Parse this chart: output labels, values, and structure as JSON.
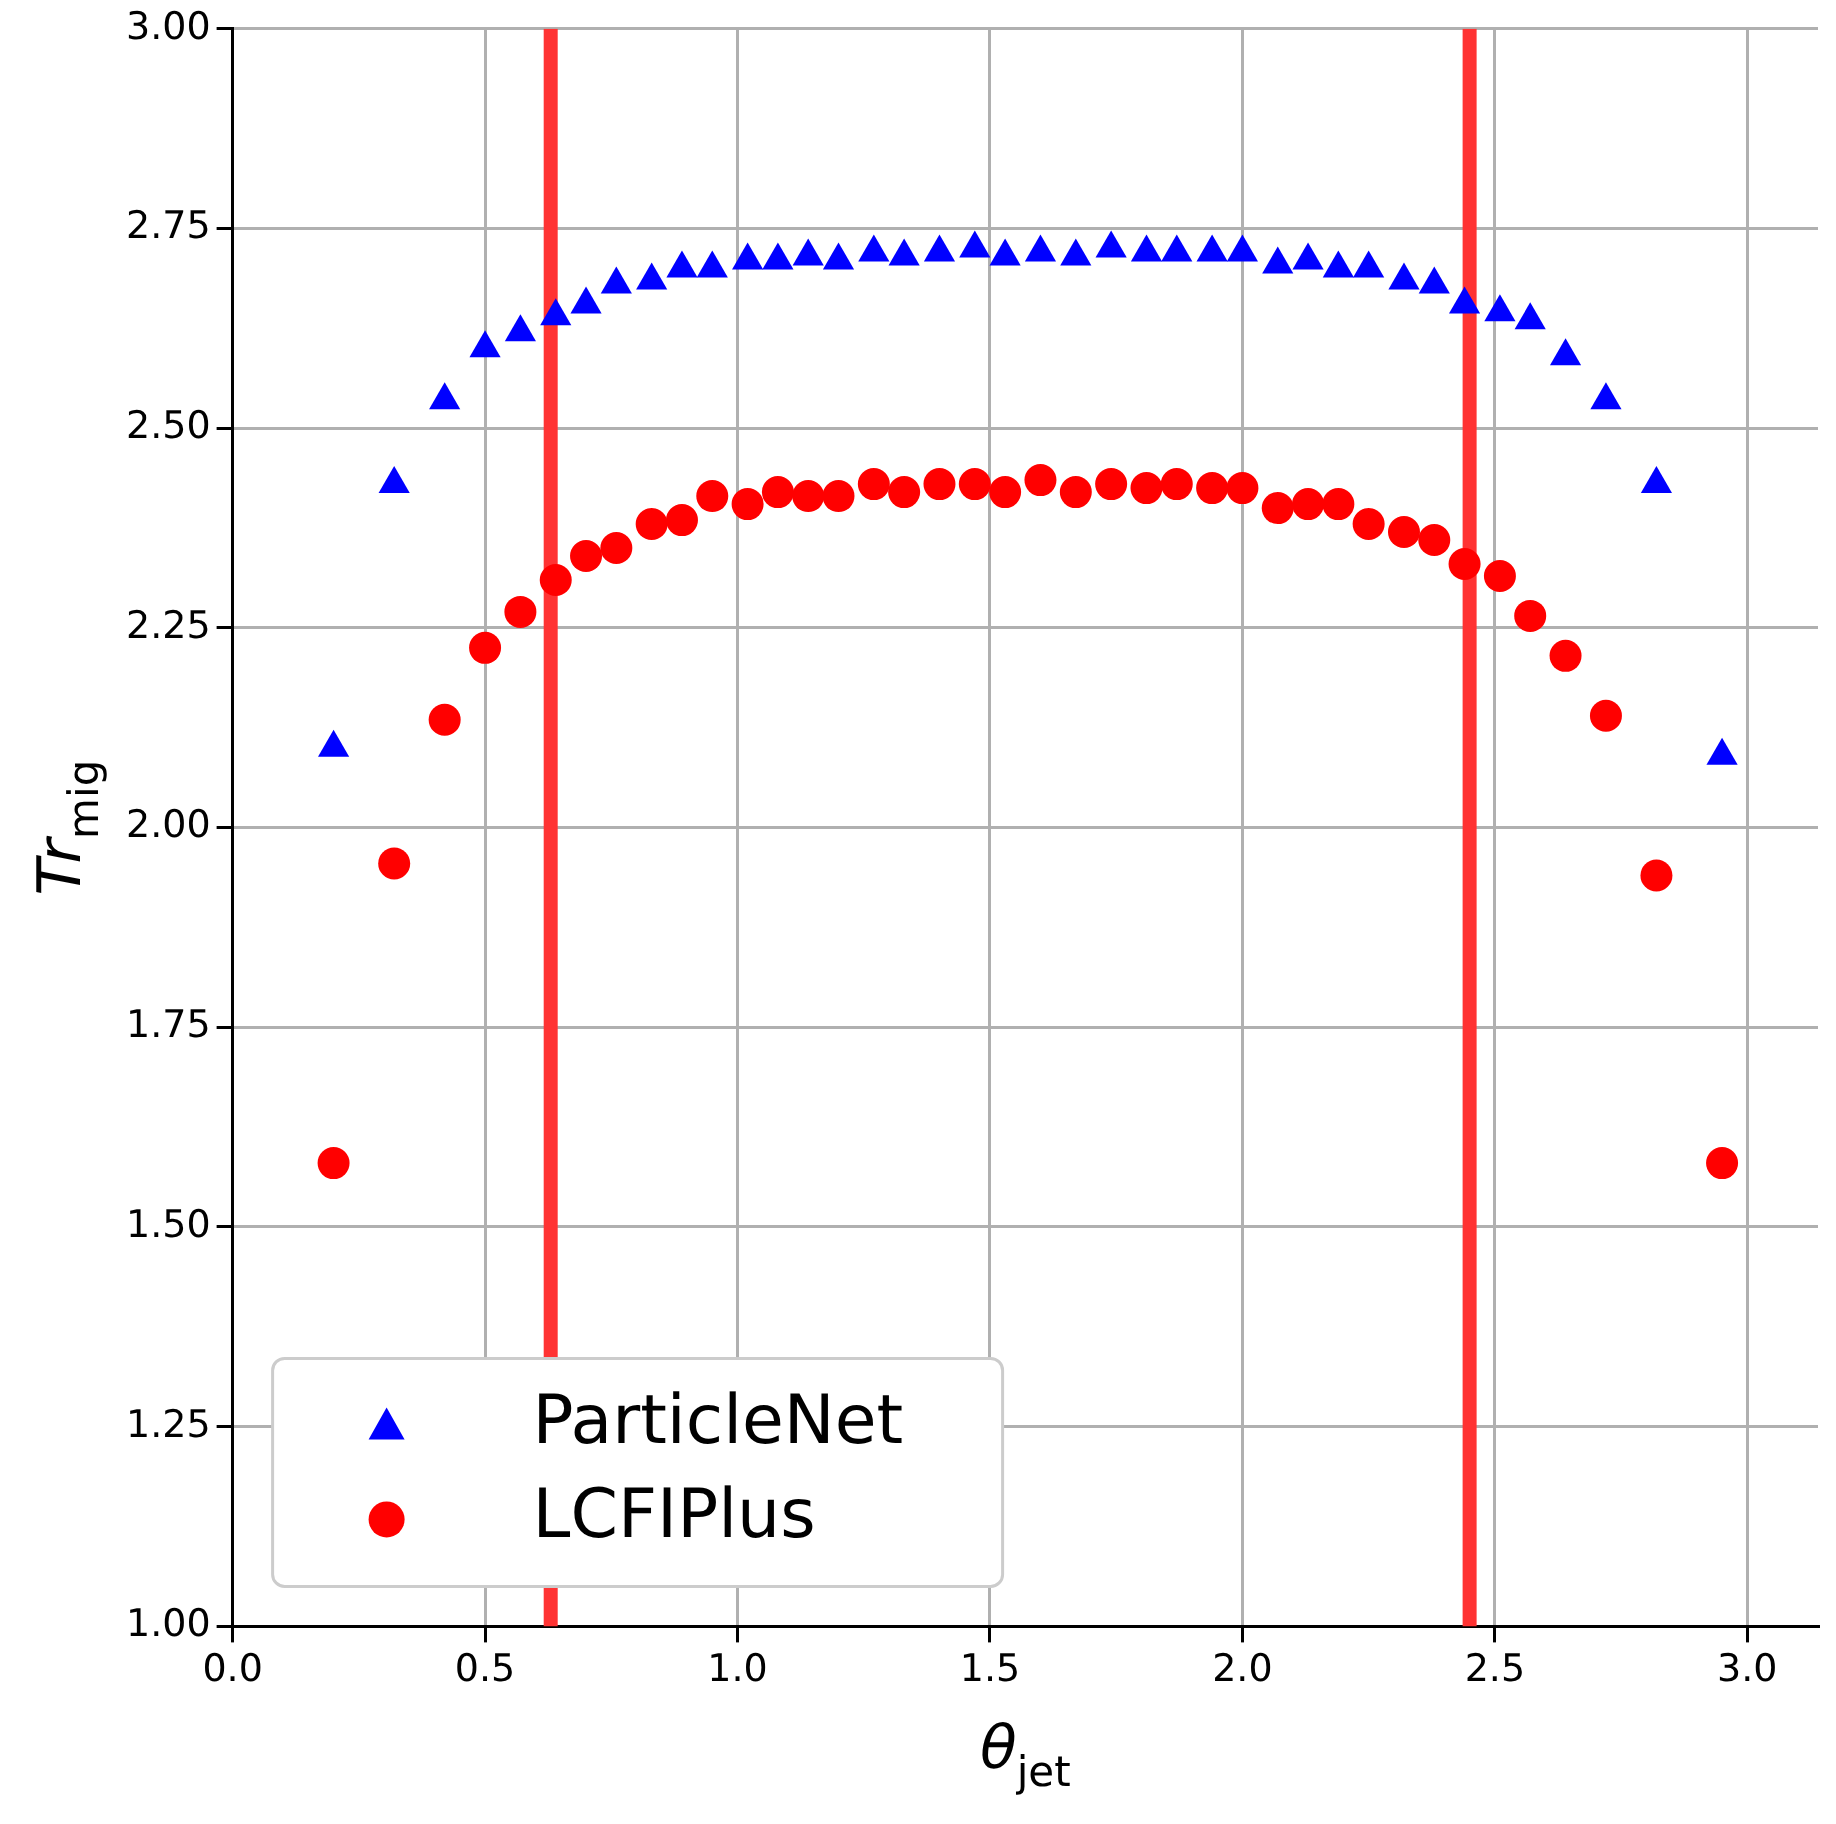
{
  "chart_data": {
    "type": "scatter",
    "xlabel": "θ$_{jet}$",
    "ylabel": "Tr$_{mig}$",
    "xlim": [
      0,
      3.14
    ],
    "xticks": [
      {
        "value": 0,
        "label": "0.0"
      },
      {
        "value": 0.5,
        "label": "0.5"
      },
      {
        "value": 1,
        "label": "1.0"
      },
      {
        "value": 1.5,
        "label": "1.5"
      },
      {
        "value": 2,
        "label": "2.0"
      },
      {
        "value": 2.5,
        "label": "2.5"
      },
      {
        "value": 3,
        "label": "3.0"
      }
    ],
    "ylim": [
      1,
      3
    ],
    "yticks": [
      {
        "value": 1,
        "label": "1.00"
      },
      {
        "value": 1.25,
        "label": "1.25"
      },
      {
        "value": 1.5,
        "label": "1.50"
      },
      {
        "value": 1.75,
        "label": "1.75"
      },
      {
        "value": 2,
        "label": "2.00"
      },
      {
        "value": 2.25,
        "label": "2.25"
      },
      {
        "value": 2.5,
        "label": "2.50"
      },
      {
        "value": 2.75,
        "label": "2.75"
      },
      {
        "value": 3,
        "label": "3.00"
      }
    ],
    "grid": true,
    "legend": "bottom left",
    "x": [
      0.2,
      0.32,
      0.42,
      0.5,
      0.57,
      0.64,
      0.7,
      0.76,
      0.83,
      0.89,
      0.95,
      1.02,
      1.08,
      1.14,
      1.2,
      1.27,
      1.33,
      1.4,
      1.47,
      1.53,
      1.6,
      1.67,
      1.74,
      1.81,
      1.87,
      1.94,
      2.0,
      2.07,
      2.13,
      2.19,
      2.25,
      2.32,
      2.38,
      2.44,
      2.51,
      2.57,
      2.64,
      2.72,
      2.82,
      2.95
    ],
    "series": [
      {
        "name": "ParticleNet",
        "color": "#0000ff",
        "marker": "triangle",
        "values": [
          2.1,
          2.43,
          2.535,
          2.6,
          2.62,
          2.64,
          2.655,
          2.68,
          2.685,
          2.7,
          2.7,
          2.71,
          2.71,
          2.715,
          2.71,
          2.72,
          2.715,
          2.72,
          2.725,
          2.715,
          2.72,
          2.715,
          2.725,
          2.72,
          2.72,
          2.72,
          2.72,
          2.705,
          2.71,
          2.7,
          2.7,
          2.685,
          2.68,
          2.655,
          2.645,
          2.635,
          2.59,
          2.535,
          2.43,
          2.09
        ]
      },
      {
        "name": "LCFIPlus",
        "color": "#ff0000",
        "marker": "circle",
        "values": [
          1.58,
          1.955,
          2.135,
          2.225,
          2.27,
          2.31,
          2.34,
          2.35,
          2.38,
          2.385,
          2.415,
          2.405,
          2.42,
          2.415,
          2.415,
          2.43,
          2.42,
          2.43,
          2.43,
          2.42,
          2.435,
          2.42,
          2.43,
          2.425,
          2.43,
          2.425,
          2.425,
          2.4,
          2.405,
          2.405,
          2.38,
          2.37,
          2.36,
          2.33,
          2.315,
          2.265,
          2.215,
          2.14,
          1.94,
          1.58
        ]
      }
    ],
    "ref_lines": [
      {
        "axis": "x",
        "value": 0.63,
        "color": "#ff3333"
      },
      {
        "axis": "x",
        "value": 2.45,
        "color": "#ff3333"
      }
    ]
  }
}
